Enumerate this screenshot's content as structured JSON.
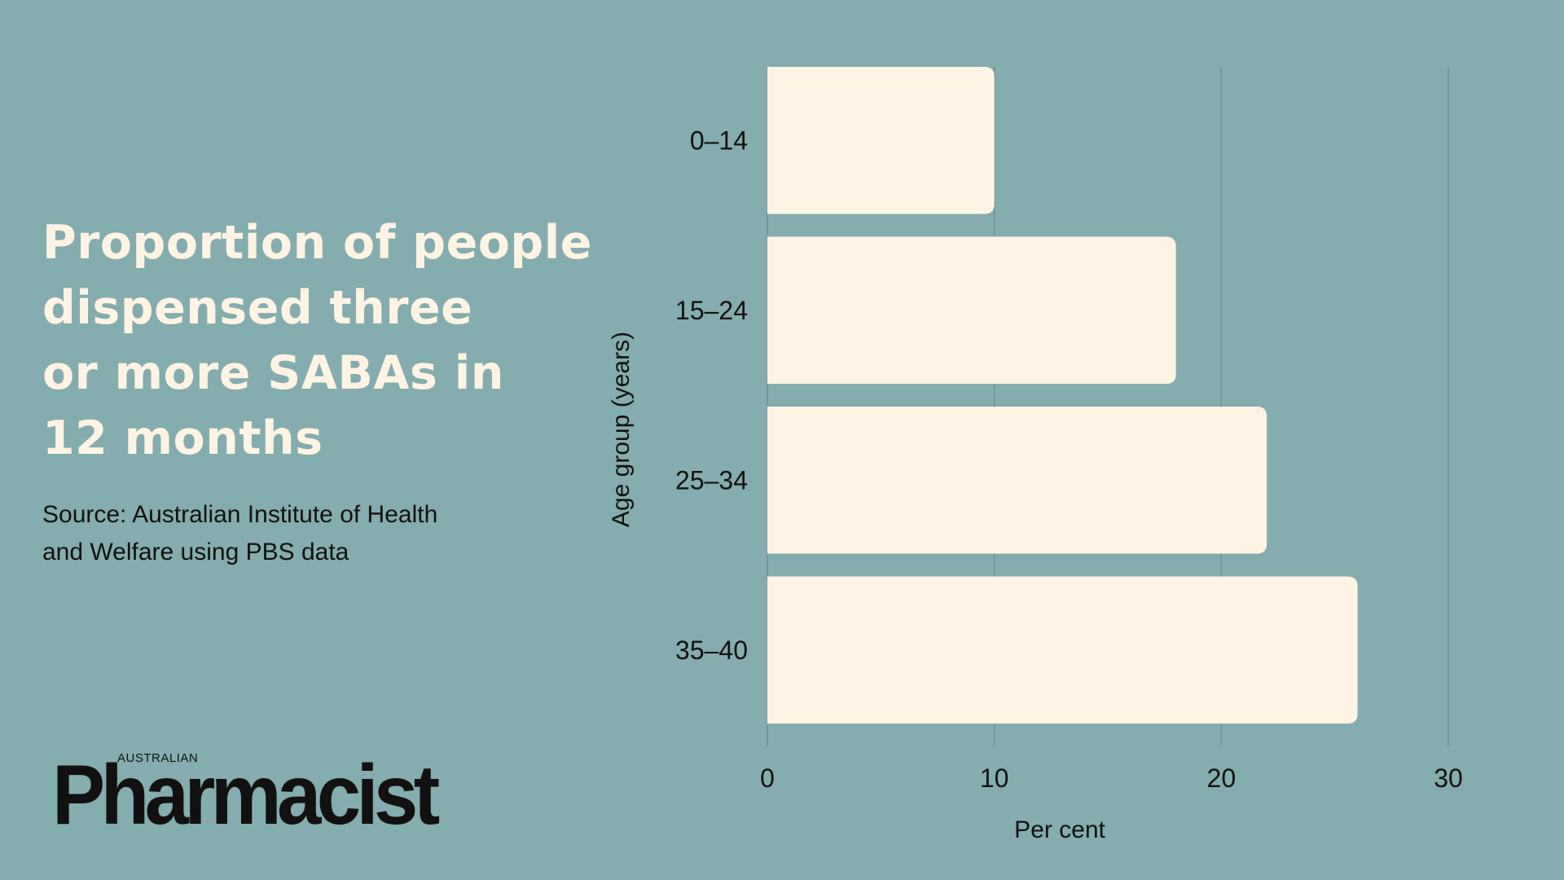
{
  "title_lines": [
    "Proportion of people",
    "dispensed three",
    "or more SABAs in",
    "12 months"
  ],
  "source_lines": [
    "Source:  Australian Institute of Health",
    "and Welfare using PBS data"
  ],
  "logo": {
    "top": "AUSTRALIAN",
    "main": "Pharmacist"
  },
  "colors": {
    "background": "#83adae",
    "bar": "#fff4e4",
    "title": "#fff4e4",
    "text": "#111111",
    "gridline": "#6b9596"
  },
  "chart_data": {
    "type": "bar",
    "orientation": "horizontal",
    "categories": [
      "0–14",
      "15–24",
      "25–34",
      "35–40"
    ],
    "values": [
      10,
      18,
      22,
      26
    ],
    "tick_labels": [
      "0",
      "10",
      "20",
      "30"
    ],
    "xlabel": "Per cent",
    "ylabel": "Age group (years)",
    "xlim": [
      0,
      30
    ],
    "grid": true,
    "legend": "none"
  }
}
